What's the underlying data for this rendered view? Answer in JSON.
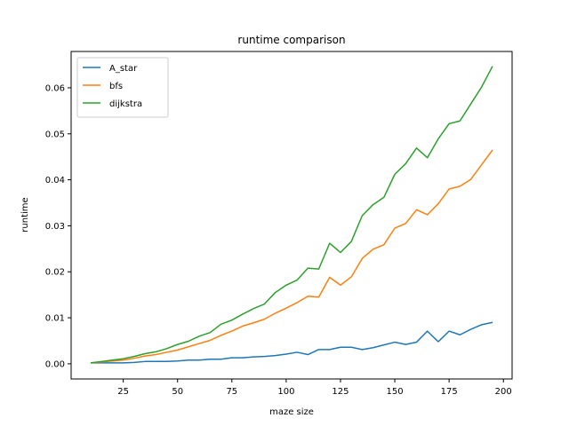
{
  "chart_data": {
    "type": "line",
    "title": "runtime comparison",
    "xlabel": "maze size",
    "ylabel": "runtime",
    "xlim": [
      1,
      204
    ],
    "ylim": [
      -0.0033,
      0.0679
    ],
    "xticks": [
      25,
      50,
      75,
      100,
      125,
      150,
      175,
      200
    ],
    "yticks": [
      0.0,
      0.01,
      0.02,
      0.03,
      0.04,
      0.05,
      0.06
    ],
    "grid": false,
    "legend_position": "top-left",
    "x": [
      10,
      15,
      20,
      25,
      30,
      35,
      40,
      45,
      50,
      55,
      60,
      65,
      70,
      75,
      80,
      85,
      90,
      95,
      100,
      105,
      110,
      115,
      120,
      125,
      130,
      135,
      140,
      145,
      150,
      155,
      160,
      165,
      170,
      175,
      180,
      185,
      190,
      195
    ],
    "series": [
      {
        "name": "A_star",
        "color": "#1f77b4",
        "values": [
          0.0002,
          0.0002,
          0.0002,
          0.0002,
          0.0003,
          0.0005,
          0.0005,
          0.0005,
          0.0006,
          0.0008,
          0.0008,
          0.001,
          0.001,
          0.0013,
          0.0013,
          0.0015,
          0.0016,
          0.0018,
          0.0021,
          0.0025,
          0.002,
          0.0031,
          0.0031,
          0.0036,
          0.0036,
          0.0031,
          0.0035,
          0.0041,
          0.0047,
          0.0042,
          0.0047,
          0.0071,
          0.0048,
          0.0071,
          0.0063,
          0.0075,
          0.0085,
          0.009
        ]
      },
      {
        "name": "bfs",
        "color": "#ff7f0e",
        "values": [
          0.0002,
          0.0004,
          0.0006,
          0.0008,
          0.0012,
          0.0017,
          0.002,
          0.0025,
          0.003,
          0.0037,
          0.0044,
          0.0051,
          0.0062,
          0.0071,
          0.0082,
          0.0089,
          0.0097,
          0.011,
          0.0121,
          0.0133,
          0.0147,
          0.0145,
          0.0188,
          0.0171,
          0.0189,
          0.0229,
          0.0249,
          0.0259,
          0.0295,
          0.0305,
          0.0335,
          0.0324,
          0.0348,
          0.038,
          0.0386,
          0.0401,
          0.0433,
          0.0465
        ]
      },
      {
        "name": "dijkstra",
        "color": "#2ca02c",
        "values": [
          0.0002,
          0.0005,
          0.0008,
          0.0011,
          0.0016,
          0.0022,
          0.0026,
          0.0033,
          0.0042,
          0.0049,
          0.006,
          0.0068,
          0.0086,
          0.0095,
          0.0108,
          0.012,
          0.013,
          0.0155,
          0.0171,
          0.0182,
          0.0208,
          0.0206,
          0.0262,
          0.0242,
          0.0266,
          0.0322,
          0.0346,
          0.0362,
          0.0412,
          0.0435,
          0.0469,
          0.0448,
          0.0489,
          0.0522,
          0.0528,
          0.0565,
          0.0602,
          0.0647
        ]
      }
    ]
  }
}
